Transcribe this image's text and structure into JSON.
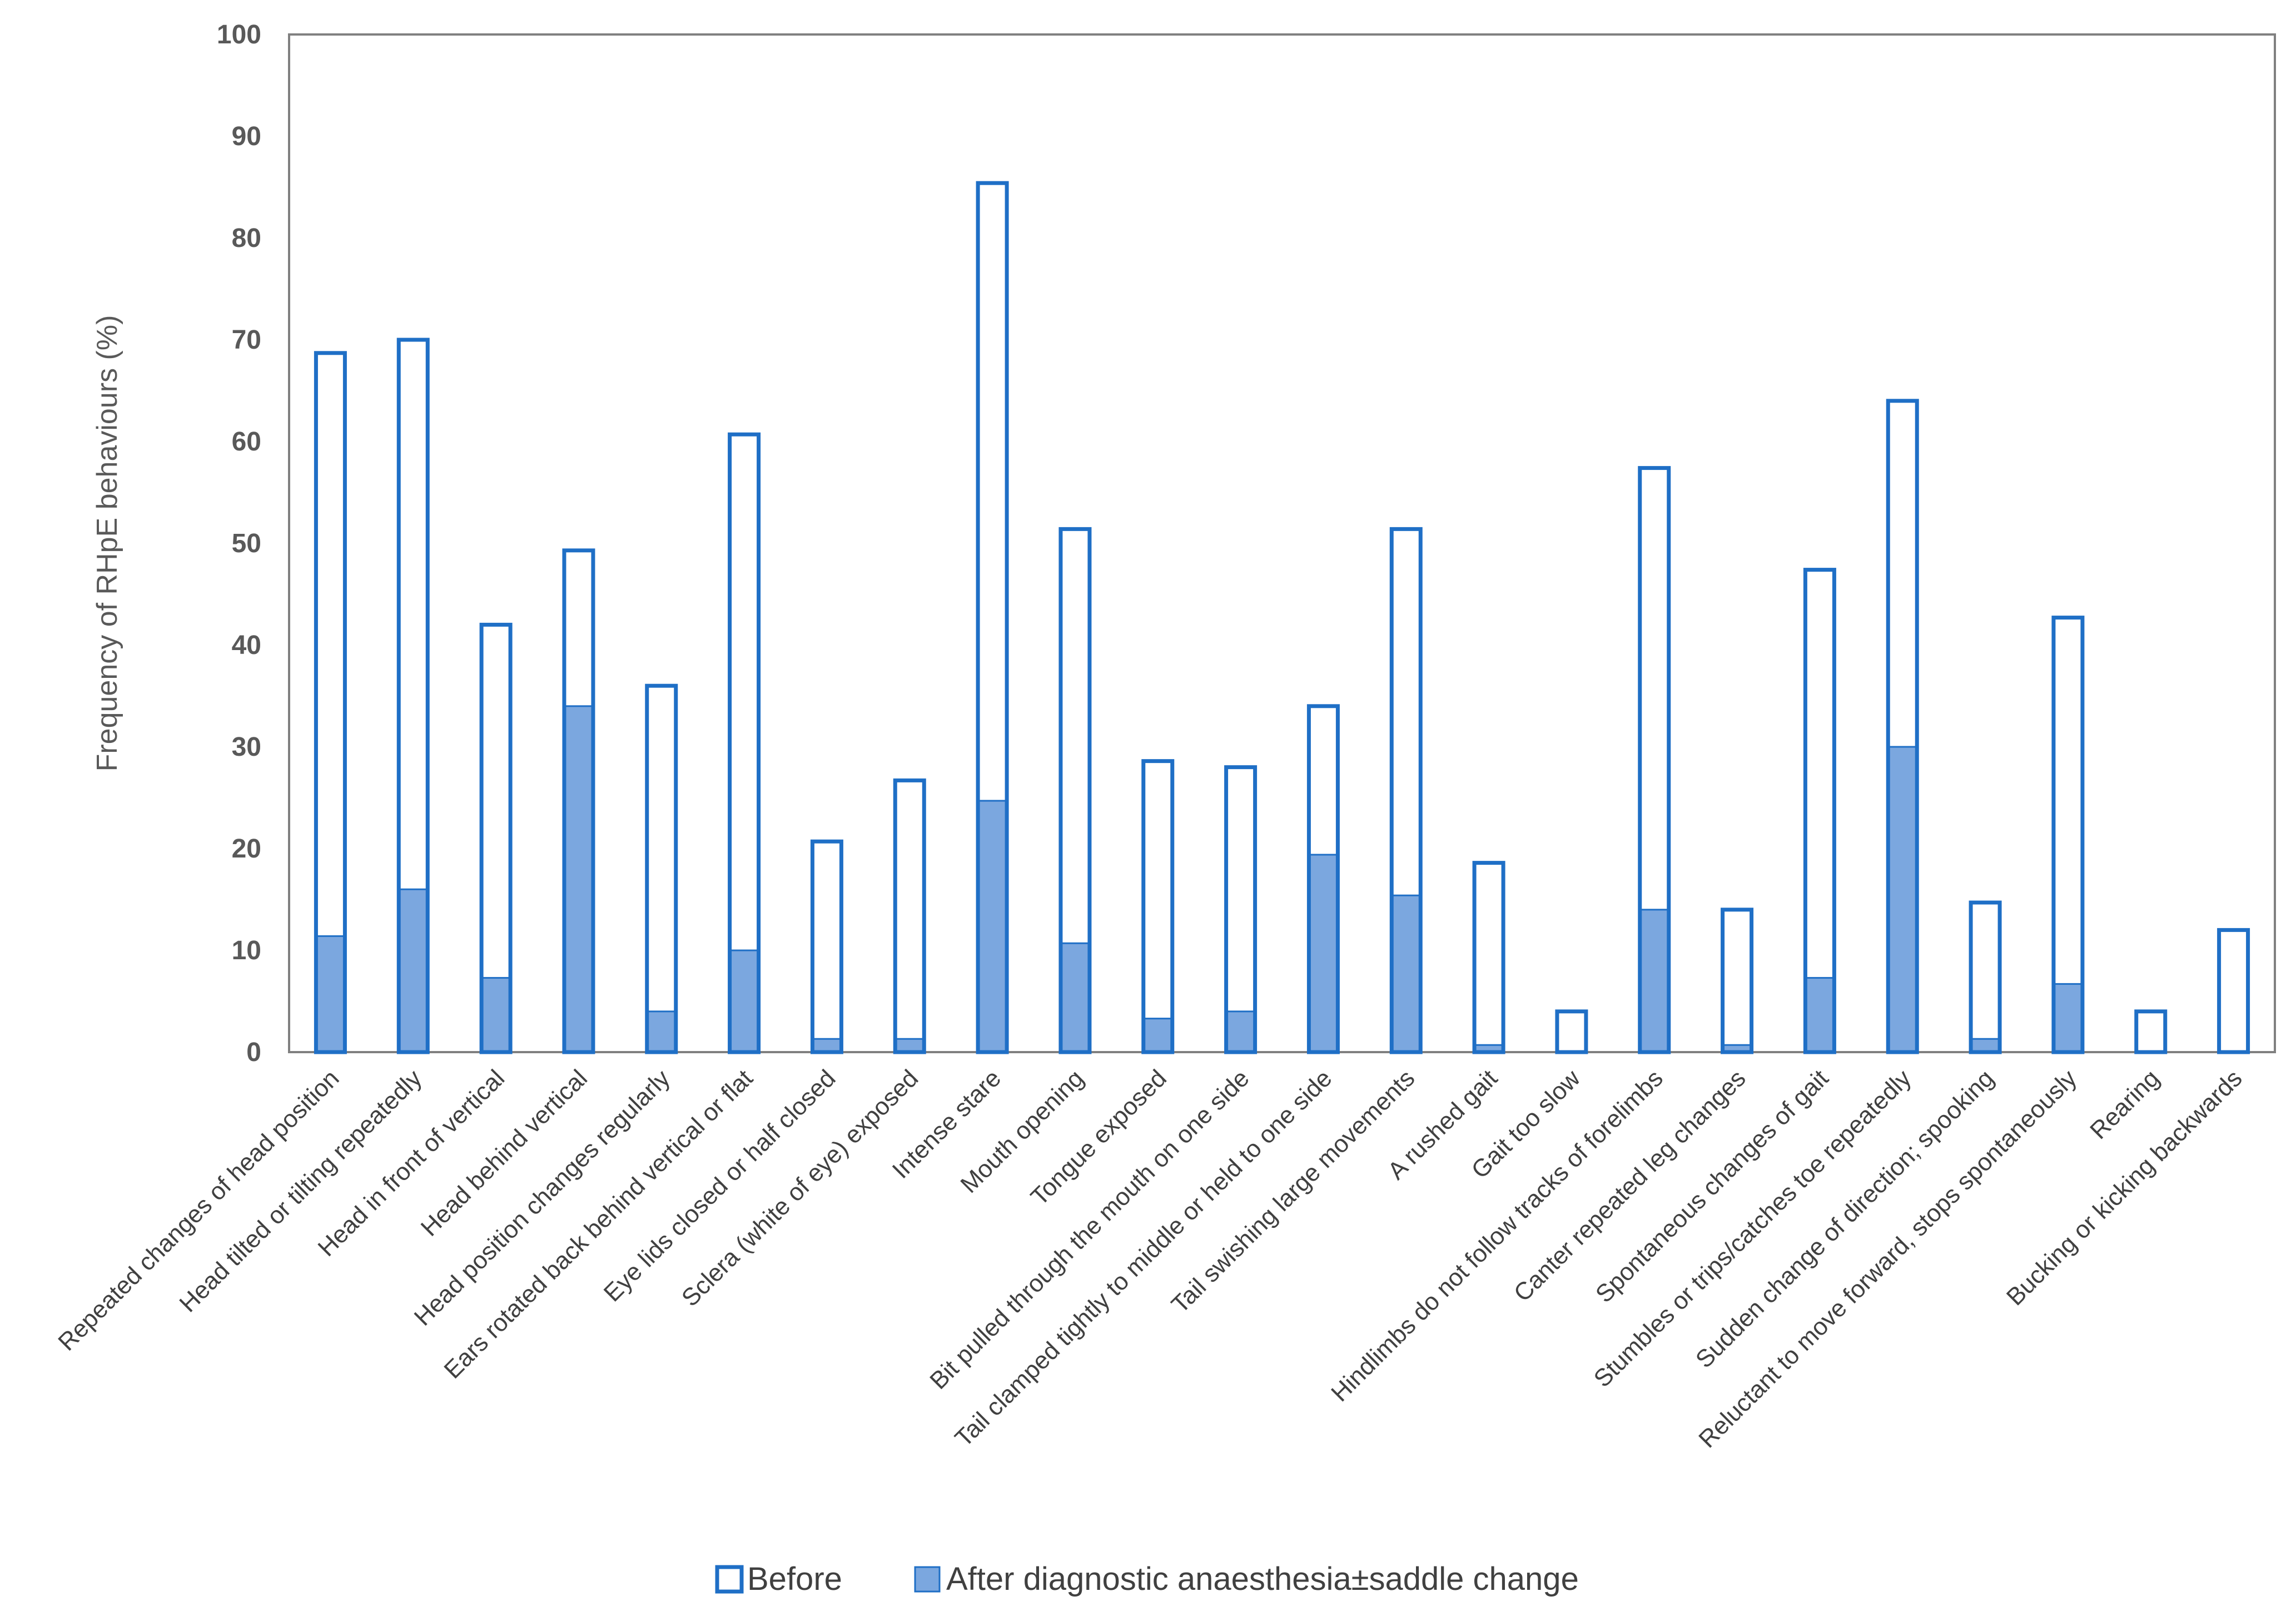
{
  "chart_data": {
    "type": "bar",
    "ylabel": "Frequency of RHpE behaviours (%)",
    "ylim": [
      0,
      100
    ],
    "yticks": [
      "0",
      "10",
      "20",
      "30",
      "40",
      "50",
      "60",
      "70",
      "80",
      "90",
      "100"
    ],
    "grid": false,
    "legend_position": "bottom",
    "colors": {
      "before_stroke": "#1f6fc6",
      "before_fill": "#ffffff",
      "after_fill": "#7ba7df",
      "axis": "#808080"
    },
    "categories": [
      "Repeated changes of head position",
      "Head tilted or tilting repeatedly",
      "Head in front of vertical",
      "Head behind vertical",
      "Head position changes regularly",
      "Ears rotated back behind vertical or flat",
      "Eye lids closed or half closed",
      "Sclera (white of eye) exposed",
      "Intense stare",
      "Mouth opening",
      "Tongue exposed",
      "Bit pulled through the mouth on one side",
      "Tail clamped tightly to middle or held to one side",
      "Tail swishing large movements",
      "A rushed gait",
      "Gait too slow",
      "Hindlimbs do not follow tracks of forelimbs",
      "Canter repeated leg changes",
      "Spontaneous changes of gait",
      "Stumbles or trips/catches toe repeatedly",
      "Sudden change of direction; spooking",
      "Reluctant to move forward, stops spontaneously",
      "Rearing",
      "Bucking or kicking backwards"
    ],
    "series": [
      {
        "name": "Before",
        "values": [
          68.7,
          70.0,
          42.0,
          49.3,
          36.0,
          60.7,
          20.7,
          26.7,
          85.4,
          51.4,
          28.6,
          28.0,
          34.0,
          51.4,
          18.6,
          4.0,
          57.4,
          14.0,
          47.4,
          64.0,
          14.7,
          42.7,
          4.0,
          12.0
        ]
      },
      {
        "name": "After diagnostic anaesthesia±saddle change",
        "values": [
          11.4,
          16.0,
          7.3,
          34.0,
          4.0,
          10.0,
          1.3,
          1.3,
          24.7,
          10.7,
          3.3,
          4.0,
          19.4,
          15.4,
          0.7,
          0.0,
          14.0,
          0.7,
          7.3,
          30.0,
          1.3,
          6.7,
          0.0,
          0.0
        ]
      }
    ]
  }
}
